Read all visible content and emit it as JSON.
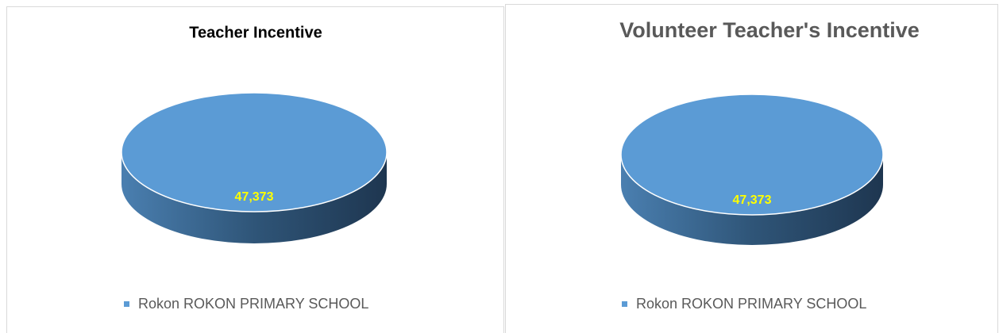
{
  "chart_data": [
    {
      "type": "pie",
      "title": "Teacher Incentive",
      "categories": [
        "Rokon ROKON PRIMARY SCHOOL"
      ],
      "values": [
        47373
      ],
      "value_labels": [
        "47,373"
      ],
      "colors": [
        "#5b9bd5"
      ],
      "legend": "bottom"
    },
    {
      "type": "pie",
      "title": "Volunteer Teacher's Incentive",
      "categories": [
        "Rokon ROKON PRIMARY SCHOOL"
      ],
      "values": [
        47373
      ],
      "value_labels": [
        "47,373"
      ],
      "colors": [
        "#5b9bd5"
      ],
      "legend": "bottom"
    }
  ]
}
